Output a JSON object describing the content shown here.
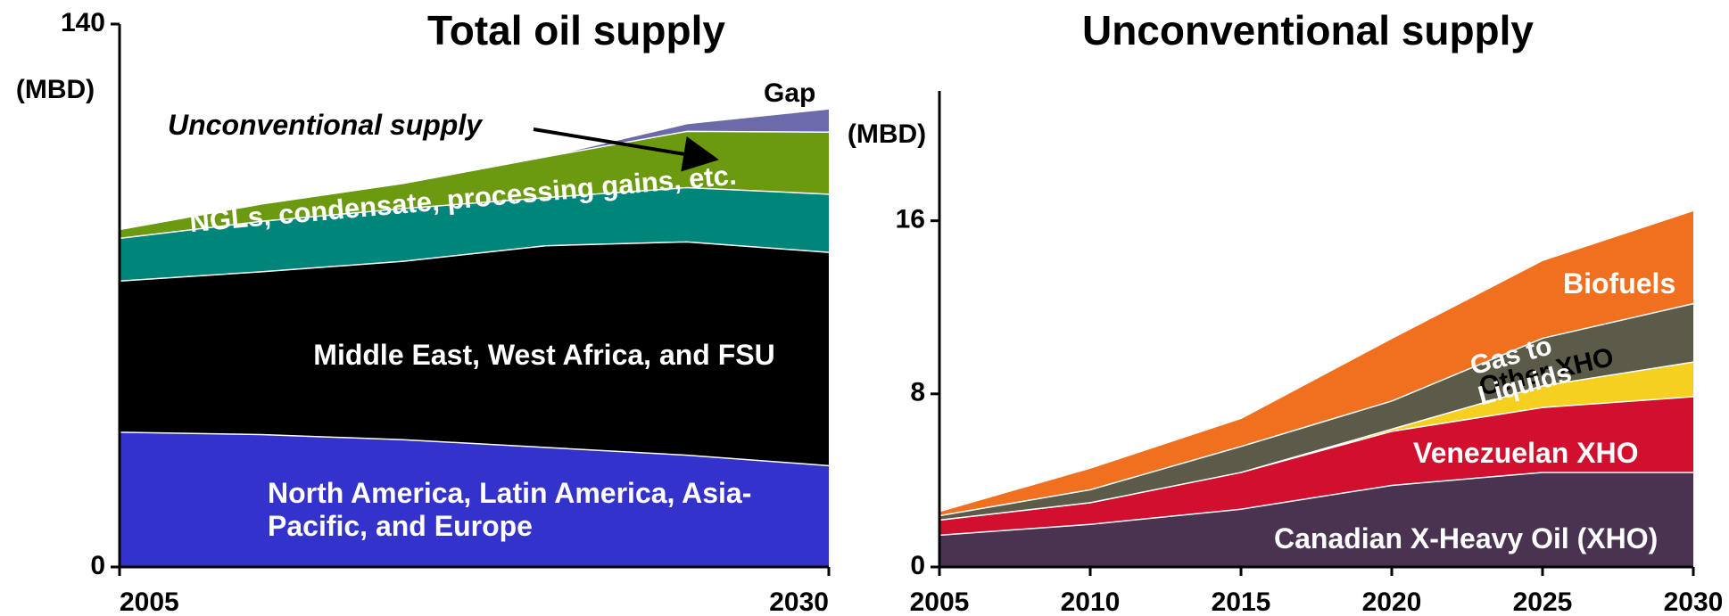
{
  "chart_data": [
    {
      "type": "stacked_area",
      "title": "Total oil supply",
      "y_label": "(MBD)",
      "x": [
        2005,
        2010,
        2015,
        2020,
        2025,
        2030
      ],
      "xlim": [
        2005,
        2030
      ],
      "xticks": [
        2005,
        2030
      ],
      "ylim": [
        0,
        140
      ],
      "yticks": [
        0,
        140
      ],
      "series": [
        {
          "name": "North America, Latin America, Asia-Pacific, and Europe",
          "color": "#3333cc",
          "values": [
            34.9,
            34.3,
            33,
            31,
            29,
            26.3
          ]
        },
        {
          "name": "Middle East, West Africa, and FSU",
          "color": "#000000",
          "values": [
            39,
            42,
            46,
            52,
            55,
            55
          ]
        },
        {
          "name": "NGLs, condensate, processing gains, etc.",
          "color": "#00857a",
          "values": [
            11,
            13,
            13.6,
            12.4,
            14,
            15
          ]
        },
        {
          "name": "Unconventional supply",
          "color": "#6b9a10",
          "values": [
            2.3,
            4.5,
            6.5,
            10.5,
            14.5,
            16
          ]
        },
        {
          "name": "Gap",
          "color": "#6b6baa",
          "values": [
            0,
            0,
            0,
            0,
            2,
            6
          ]
        }
      ]
    },
    {
      "type": "stacked_area",
      "title": "Unconventional supply",
      "y_label": "(MBD)",
      "x": [
        2005,
        2010,
        2015,
        2020,
        2025,
        2030
      ],
      "xlim": [
        2005,
        2030
      ],
      "xticks": [
        2005,
        2010,
        2015,
        2020,
        2025,
        2030
      ],
      "ylim": [
        0,
        22
      ],
      "yticks": [
        0,
        8,
        16
      ],
      "series": [
        {
          "name": "Canadian X-Heavy Oil (XHO)",
          "color": "#4a3350",
          "values": [
            1.5,
            2.0,
            2.7,
            3.8,
            4.4,
            4.4
          ]
        },
        {
          "name": "Venezuelan XHO",
          "color": "#d0102e",
          "values": [
            0.7,
            1.0,
            1.7,
            2.5,
            3.0,
            3.5
          ]
        },
        {
          "name": "Other XHO",
          "color": "#f5d020",
          "values": [
            0,
            0,
            0,
            0.1,
            1.0,
            1.6
          ]
        },
        {
          "name": "Gas to Liquids",
          "color": "#5c5a48",
          "values": [
            0.2,
            0.6,
            1.2,
            1.3,
            2.2,
            2.7
          ]
        },
        {
          "name": "Biofuels",
          "color": "#f07020",
          "values": [
            0.2,
            1.0,
            1.3,
            2.9,
            3.6,
            4.3
          ]
        }
      ]
    }
  ]
}
